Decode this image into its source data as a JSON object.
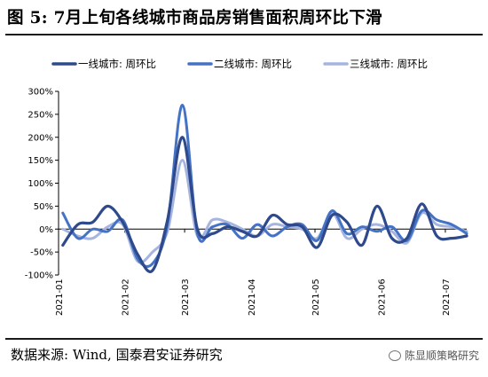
{
  "title": "图 5:  7月上旬各线城市商品房销售面积周环比下滑",
  "source": "数据来源: Wind, 国泰君安证券研究",
  "watermark": "陈显顺策略研究",
  "colors": {
    "series1": "#2E4A8C",
    "series2": "#4472C4",
    "series3": "#A6B5E0"
  },
  "chart_data": {
    "type": "line",
    "title": "",
    "xlabel": "",
    "ylabel": "",
    "ylim": [
      -100,
      300
    ],
    "yticks": [
      "300%",
      "250%",
      "200%",
      "150%",
      "100%",
      "50%",
      "0%",
      "-50%",
      "-100%"
    ],
    "x_tick_labels": [
      "2021-01",
      "2021-02",
      "2021-03",
      "2021-04",
      "2021-05",
      "2021-06",
      "2021-07"
    ],
    "legend_position": "top",
    "grid": false,
    "series": [
      {
        "name": "一线城市: 周环比",
        "x": [
          "2021-01-03",
          "2021-01-10",
          "2021-01-17",
          "2021-01-24",
          "2021-01-31",
          "2021-02-07",
          "2021-02-14",
          "2021-02-21",
          "2021-02-28",
          "2021-03-07",
          "2021-03-14",
          "2021-03-21",
          "2021-03-28",
          "2021-04-04",
          "2021-04-11",
          "2021-04-18",
          "2021-04-25",
          "2021-05-02",
          "2021-05-09",
          "2021-05-16",
          "2021-05-23",
          "2021-05-30",
          "2021-06-06",
          "2021-06-13",
          "2021-06-20",
          "2021-06-27",
          "2021-07-04",
          "2021-07-11"
        ],
        "values": [
          -35,
          10,
          15,
          50,
          15,
          -55,
          -90,
          20,
          200,
          0,
          -10,
          5,
          -5,
          -15,
          30,
          10,
          5,
          -40,
          30,
          15,
          -35,
          50,
          -20,
          -20,
          55,
          -15,
          -20,
          -15
        ]
      },
      {
        "name": "二线城市: 周环比",
        "x": [
          "2021-01-03",
          "2021-01-10",
          "2021-01-17",
          "2021-01-24",
          "2021-01-31",
          "2021-02-07",
          "2021-02-14",
          "2021-02-21",
          "2021-02-28",
          "2021-03-07",
          "2021-03-14",
          "2021-03-21",
          "2021-03-28",
          "2021-04-04",
          "2021-04-11",
          "2021-04-18",
          "2021-04-25",
          "2021-05-02",
          "2021-05-09",
          "2021-05-16",
          "2021-05-23",
          "2021-05-30",
          "2021-06-06",
          "2021-06-13",
          "2021-06-20",
          "2021-06-27",
          "2021-07-04",
          "2021-07-11"
        ],
        "values": [
          35,
          -20,
          0,
          -5,
          20,
          -65,
          -75,
          10,
          270,
          -10,
          5,
          10,
          -20,
          10,
          -15,
          5,
          10,
          -25,
          40,
          -10,
          5,
          -5,
          5,
          -25,
          40,
          20,
          10,
          -10
        ]
      },
      {
        "name": "三线城市: 周环比",
        "x": [
          "2021-01-03",
          "2021-01-10",
          "2021-01-17",
          "2021-01-24",
          "2021-01-31",
          "2021-02-07",
          "2021-02-14",
          "2021-02-21",
          "2021-02-28",
          "2021-03-07",
          "2021-03-14",
          "2021-03-21",
          "2021-03-28",
          "2021-04-04",
          "2021-04-11",
          "2021-04-18",
          "2021-04-25",
          "2021-05-02",
          "2021-05-09",
          "2021-05-16",
          "2021-05-23",
          "2021-05-30",
          "2021-06-06",
          "2021-06-13",
          "2021-06-20",
          "2021-06-27",
          "2021-07-04",
          "2021-07-11"
        ],
        "values": [
          0,
          -15,
          -20,
          5,
          10,
          -70,
          -50,
          -5,
          150,
          -15,
          20,
          15,
          0,
          -15,
          10,
          5,
          0,
          -20,
          35,
          -20,
          0,
          10,
          -5,
          -30,
          35,
          10,
          5,
          -5
        ]
      }
    ]
  }
}
